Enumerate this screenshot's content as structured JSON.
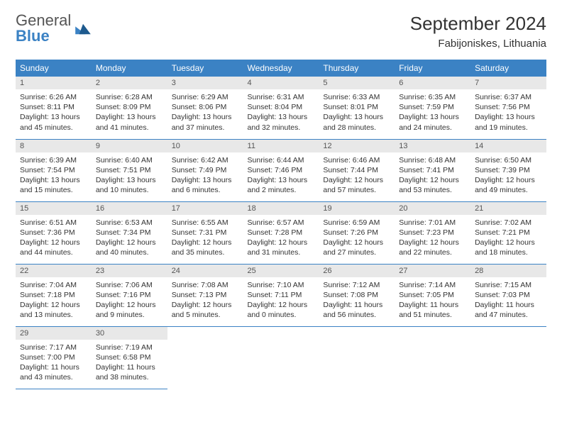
{
  "brand": {
    "word1": "General",
    "word2": "Blue"
  },
  "title": "September 2024",
  "location": "Fabijoniskes, Lithuania",
  "colors": {
    "header_bg": "#3b82c4",
    "header_fg": "#ffffff",
    "daynum_bg": "#e8e8e8",
    "rule": "#3b82c4",
    "text": "#333333"
  },
  "weekdays": [
    "Sunday",
    "Monday",
    "Tuesday",
    "Wednesday",
    "Thursday",
    "Friday",
    "Saturday"
  ],
  "days": [
    {
      "n": 1,
      "sr": "6:26 AM",
      "ss": "8:11 PM",
      "dl": "13 hours and 45 minutes."
    },
    {
      "n": 2,
      "sr": "6:28 AM",
      "ss": "8:09 PM",
      "dl": "13 hours and 41 minutes."
    },
    {
      "n": 3,
      "sr": "6:29 AM",
      "ss": "8:06 PM",
      "dl": "13 hours and 37 minutes."
    },
    {
      "n": 4,
      "sr": "6:31 AM",
      "ss": "8:04 PM",
      "dl": "13 hours and 32 minutes."
    },
    {
      "n": 5,
      "sr": "6:33 AM",
      "ss": "8:01 PM",
      "dl": "13 hours and 28 minutes."
    },
    {
      "n": 6,
      "sr": "6:35 AM",
      "ss": "7:59 PM",
      "dl": "13 hours and 24 minutes."
    },
    {
      "n": 7,
      "sr": "6:37 AM",
      "ss": "7:56 PM",
      "dl": "13 hours and 19 minutes."
    },
    {
      "n": 8,
      "sr": "6:39 AM",
      "ss": "7:54 PM",
      "dl": "13 hours and 15 minutes."
    },
    {
      "n": 9,
      "sr": "6:40 AM",
      "ss": "7:51 PM",
      "dl": "13 hours and 10 minutes."
    },
    {
      "n": 10,
      "sr": "6:42 AM",
      "ss": "7:49 PM",
      "dl": "13 hours and 6 minutes."
    },
    {
      "n": 11,
      "sr": "6:44 AM",
      "ss": "7:46 PM",
      "dl": "13 hours and 2 minutes."
    },
    {
      "n": 12,
      "sr": "6:46 AM",
      "ss": "7:44 PM",
      "dl": "12 hours and 57 minutes."
    },
    {
      "n": 13,
      "sr": "6:48 AM",
      "ss": "7:41 PM",
      "dl": "12 hours and 53 minutes."
    },
    {
      "n": 14,
      "sr": "6:50 AM",
      "ss": "7:39 PM",
      "dl": "12 hours and 49 minutes."
    },
    {
      "n": 15,
      "sr": "6:51 AM",
      "ss": "7:36 PM",
      "dl": "12 hours and 44 minutes."
    },
    {
      "n": 16,
      "sr": "6:53 AM",
      "ss": "7:34 PM",
      "dl": "12 hours and 40 minutes."
    },
    {
      "n": 17,
      "sr": "6:55 AM",
      "ss": "7:31 PM",
      "dl": "12 hours and 35 minutes."
    },
    {
      "n": 18,
      "sr": "6:57 AM",
      "ss": "7:28 PM",
      "dl": "12 hours and 31 minutes."
    },
    {
      "n": 19,
      "sr": "6:59 AM",
      "ss": "7:26 PM",
      "dl": "12 hours and 27 minutes."
    },
    {
      "n": 20,
      "sr": "7:01 AM",
      "ss": "7:23 PM",
      "dl": "12 hours and 22 minutes."
    },
    {
      "n": 21,
      "sr": "7:02 AM",
      "ss": "7:21 PM",
      "dl": "12 hours and 18 minutes."
    },
    {
      "n": 22,
      "sr": "7:04 AM",
      "ss": "7:18 PM",
      "dl": "12 hours and 13 minutes."
    },
    {
      "n": 23,
      "sr": "7:06 AM",
      "ss": "7:16 PM",
      "dl": "12 hours and 9 minutes."
    },
    {
      "n": 24,
      "sr": "7:08 AM",
      "ss": "7:13 PM",
      "dl": "12 hours and 5 minutes."
    },
    {
      "n": 25,
      "sr": "7:10 AM",
      "ss": "7:11 PM",
      "dl": "12 hours and 0 minutes."
    },
    {
      "n": 26,
      "sr": "7:12 AM",
      "ss": "7:08 PM",
      "dl": "11 hours and 56 minutes."
    },
    {
      "n": 27,
      "sr": "7:14 AM",
      "ss": "7:05 PM",
      "dl": "11 hours and 51 minutes."
    },
    {
      "n": 28,
      "sr": "7:15 AM",
      "ss": "7:03 PM",
      "dl": "11 hours and 47 minutes."
    },
    {
      "n": 29,
      "sr": "7:17 AM",
      "ss": "7:00 PM",
      "dl": "11 hours and 43 minutes."
    },
    {
      "n": 30,
      "sr": "7:19 AM",
      "ss": "6:58 PM",
      "dl": "11 hours and 38 minutes."
    }
  ],
  "labels": {
    "sunrise": "Sunrise:",
    "sunset": "Sunset:",
    "daylight": "Daylight:"
  },
  "layout": {
    "start_weekday": 0,
    "cols": 7,
    "rows": 5
  }
}
